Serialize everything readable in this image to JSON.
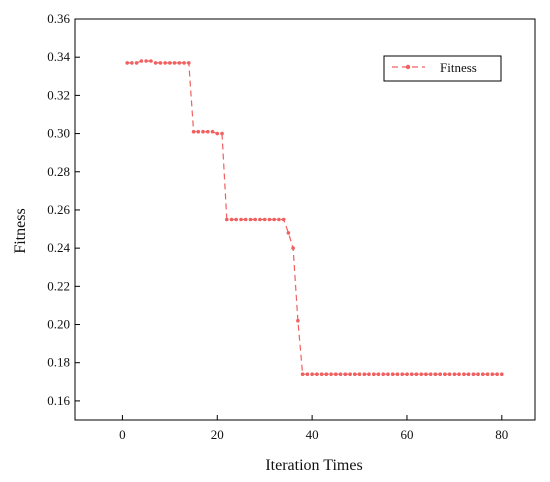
{
  "colors": {
    "series": "#f06060",
    "axis": "#000000",
    "background": "#ffffff"
  },
  "chart_data": {
    "type": "line",
    "title": "",
    "xlabel": "Iteration Times",
    "ylabel": "Fitness",
    "xlim": [
      -10,
      87
    ],
    "ylim": [
      0.15,
      0.36
    ],
    "xticks": [
      0,
      20,
      40,
      60,
      80
    ],
    "xtick_labels": [
      "0",
      "20",
      "40",
      "60",
      "80"
    ],
    "yticks": [
      0.16,
      0.18,
      0.2,
      0.22,
      0.24,
      0.26,
      0.28,
      0.3,
      0.32,
      0.34,
      0.36
    ],
    "ytick_labels": [
      "0.16",
      "0.18",
      "0.20",
      "0.22",
      "0.24",
      "0.26",
      "0.28",
      "0.30",
      "0.32",
      "0.34",
      "0.36"
    ],
    "grid": false,
    "legend": {
      "position": "top-right",
      "entries": [
        "Fitness"
      ]
    },
    "series": [
      {
        "name": "Fitness",
        "line_style": "dashed",
        "marker": "circle",
        "x": [
          1,
          2,
          3,
          4,
          5,
          6,
          7,
          8,
          9,
          10,
          11,
          12,
          13,
          14,
          15,
          16,
          17,
          18,
          19,
          20,
          21,
          22,
          23,
          24,
          25,
          26,
          27,
          28,
          29,
          30,
          31,
          32,
          33,
          34,
          35,
          36,
          37,
          38,
          39,
          40,
          41,
          42,
          43,
          44,
          45,
          46,
          47,
          48,
          49,
          50,
          51,
          52,
          53,
          54,
          55,
          56,
          57,
          58,
          59,
          60,
          61,
          62,
          63,
          64,
          65,
          66,
          67,
          68,
          69,
          70,
          71,
          72,
          73,
          74,
          75,
          76,
          77,
          78,
          79,
          80
        ],
        "y": [
          0.337,
          0.337,
          0.337,
          0.338,
          0.338,
          0.338,
          0.337,
          0.337,
          0.337,
          0.337,
          0.337,
          0.337,
          0.337,
          0.337,
          0.301,
          0.301,
          0.301,
          0.301,
          0.301,
          0.3,
          0.3,
          0.255,
          0.255,
          0.255,
          0.255,
          0.255,
          0.255,
          0.255,
          0.255,
          0.255,
          0.255,
          0.255,
          0.255,
          0.255,
          0.248,
          0.24,
          0.202,
          0.174,
          0.174,
          0.174,
          0.174,
          0.174,
          0.174,
          0.174,
          0.174,
          0.174,
          0.174,
          0.174,
          0.174,
          0.174,
          0.174,
          0.174,
          0.174,
          0.174,
          0.174,
          0.174,
          0.174,
          0.174,
          0.174,
          0.174,
          0.174,
          0.174,
          0.174,
          0.174,
          0.174,
          0.174,
          0.174,
          0.174,
          0.174,
          0.174,
          0.174,
          0.174,
          0.174,
          0.174,
          0.174,
          0.174,
          0.174,
          0.174,
          0.174,
          0.174
        ]
      }
    ]
  }
}
